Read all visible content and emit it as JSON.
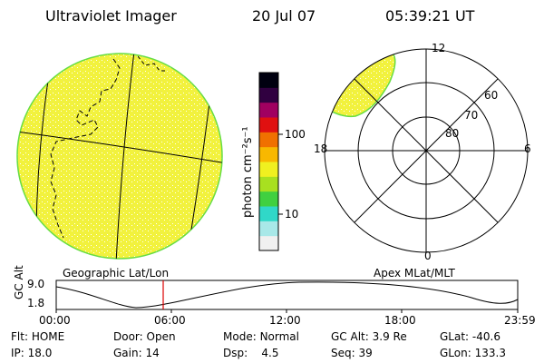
{
  "header": {
    "title": "Ultraviolet Imager",
    "date": "20 Jul 07",
    "time": "05:39:21 UT"
  },
  "colorbar": {
    "unit_label": "photon cm⁻²s⁻¹",
    "ticks": [
      "100",
      "10"
    ],
    "colors": [
      "#f0f0f0",
      "#a8e8e8",
      "#30d8c8",
      "#40d040",
      "#a8e020",
      "#f0f020",
      "#f8b800",
      "#f07000",
      "#e01010",
      "#a00060",
      "#300040",
      "#000010"
    ]
  },
  "geo_panel": {
    "label": "Geographic Lat/Lon",
    "fill_color": "#f2f23c",
    "rim_color": "#66dd44"
  },
  "polar_panel": {
    "label": "Apex MLat/MLT",
    "mlt_labels": {
      "top": "12",
      "left": "18",
      "right": "6",
      "bottom": "0"
    },
    "lat_labels": [
      "60",
      "70",
      "80"
    ]
  },
  "altitude_plot": {
    "y_axis_label": "GC Alt",
    "y_ticks": [
      "9.0",
      "1.8"
    ],
    "x_ticks": [
      "00:00",
      "06:00",
      "12:00",
      "18:00",
      "23:59"
    ],
    "marker_color": "#dd0000"
  },
  "footer": {
    "row1": [
      {
        "label": "Flt:",
        "value": "HOME"
      },
      {
        "label": "Door:",
        "value": "Open"
      },
      {
        "label": "Mode:",
        "value": "Normal"
      },
      {
        "label": "GC Alt:",
        "value": "3.9 Re"
      },
      {
        "label": "GLat:",
        "value": "-40.6"
      }
    ],
    "row2": [
      {
        "label": "IP:",
        "value": "18.0"
      },
      {
        "label": "Gain:",
        "value": "14"
      },
      {
        "label": "Dsp:",
        "value": "4.5"
      },
      {
        "label": "Seq:",
        "value": "39"
      },
      {
        "label": "GLon:",
        "value": "133.3"
      }
    ]
  }
}
